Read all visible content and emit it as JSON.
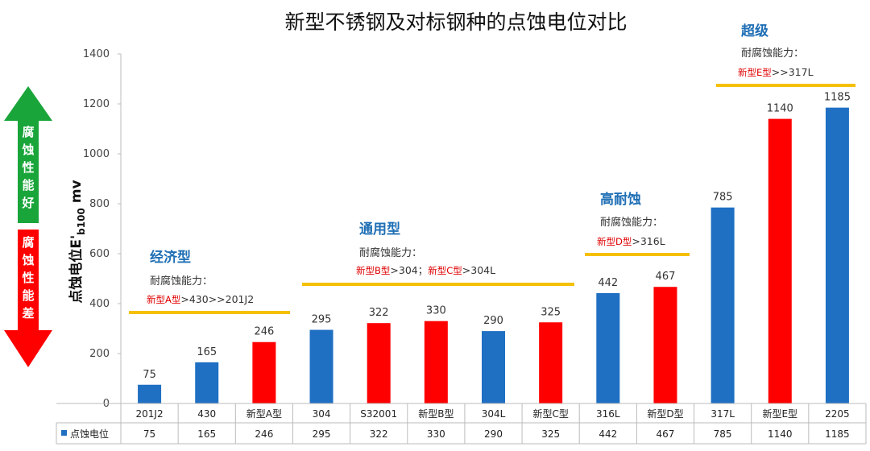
{
  "chart_data": {
    "type": "bar",
    "title": "新型不锈钢及对标钢种的点蚀电位对比",
    "ylabel_main": "点蚀电位E'",
    "ylabel_sub": "b100",
    "ylabel_unit": "mv",
    "ylim": [
      0,
      1400
    ],
    "yticks": [
      0,
      200,
      400,
      600,
      800,
      1000,
      1200,
      1400
    ],
    "categories": [
      "201J2",
      "430",
      "新型A型",
      "304",
      "S32001",
      "新型B型",
      "304L",
      "新型C型",
      "316L",
      "新型D型",
      "317L",
      "新型E型",
      "2205"
    ],
    "series": [
      {
        "name": "点蚀电位",
        "values": [
          75,
          165,
          246,
          295,
          322,
          330,
          290,
          325,
          442,
          467,
          785,
          1140,
          1185
        ]
      }
    ],
    "value_labels": [
      "75",
      "165",
      "246",
      "295",
      "322",
      "330",
      "290",
      "325",
      "442",
      "467",
      "785",
      "1140",
      "1185"
    ],
    "bar_colors": [
      "#1f6fc2",
      "#1f6fc2",
      "#ff0000",
      "#1f6fc2",
      "#ff0000",
      "#ff0000",
      "#1f6fc2",
      "#ff0000",
      "#1f6fc2",
      "#ff0000",
      "#1f6fc2",
      "#ff0000",
      "#1f6fc2"
    ],
    "colors": {
      "blue": "#1f6fc2",
      "red": "#ff0000",
      "gold": "#f5c000",
      "green": "#1aa53a"
    },
    "legend_label": "点蚀电位",
    "table_values": [
      "75",
      "165",
      "246",
      "295",
      "322",
      "330",
      "290",
      "325",
      "442",
      "467",
      "785",
      "1140",
      "1185"
    ],
    "groups": [
      {
        "title": "经济型",
        "sub": "耐腐蚀能力：",
        "note_red": "新型A型",
        "note": ">430>>201J2"
      },
      {
        "title": "通用型",
        "sub": "耐腐蚀能力：",
        "note_red": "新型B型",
        "note": ">304；",
        "note_red2": "新型C型",
        "note2": ">304L"
      },
      {
        "title": "高耐蚀",
        "sub": "耐腐蚀能力：",
        "note_red": "新型D型",
        "note": ">316L"
      },
      {
        "title": "超级",
        "sub": "耐腐蚀能力：",
        "note_red": "新型E型",
        "note": ">>317L"
      }
    ],
    "arrows": {
      "up_label": "腐蚀性能好",
      "down_label": "腐蚀性能差"
    }
  }
}
